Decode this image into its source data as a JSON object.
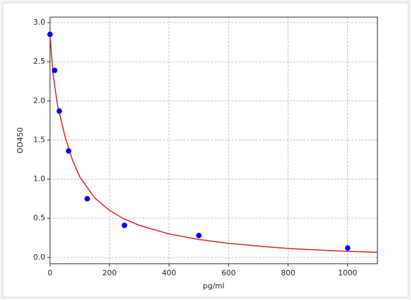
{
  "chart_data": {
    "type": "scatter",
    "xlabel": "pg/ml",
    "ylabel": "OD450",
    "xlim": [
      0,
      1100
    ],
    "ylim": [
      -0.08,
      3.07
    ],
    "xticks": [
      0,
      200,
      400,
      600,
      800,
      1000
    ],
    "yticks": [
      {
        "value": 0,
        "label": "0.0"
      },
      0.5,
      {
        "value": 1,
        "label": "1.0"
      },
      1.5,
      {
        "value": 2,
        "label": "2.0"
      },
      2.5,
      {
        "value": 3,
        "label": "3.0"
      }
    ],
    "grid": true,
    "series": [
      {
        "style": "points",
        "color": "#0000ee",
        "x": [
          0,
          15.6,
          31.25,
          62.5,
          125,
          250,
          500,
          1000
        ],
        "values": [
          2.85,
          2.39,
          1.87,
          1.36,
          0.75,
          0.41,
          0.28,
          0.12
        ]
      },
      {
        "style": "line",
        "color": "#d02020",
        "x": [
          0,
          10,
          25,
          50,
          75,
          100,
          150,
          200,
          250,
          300,
          400,
          500,
          600,
          700,
          800,
          900,
          1000,
          1100
        ],
        "values": [
          2.85,
          2.35,
          1.95,
          1.55,
          1.25,
          1.03,
          0.76,
          0.6,
          0.49,
          0.41,
          0.3,
          0.23,
          0.18,
          0.145,
          0.115,
          0.095,
          0.078,
          0.065
        ]
      }
    ]
  }
}
